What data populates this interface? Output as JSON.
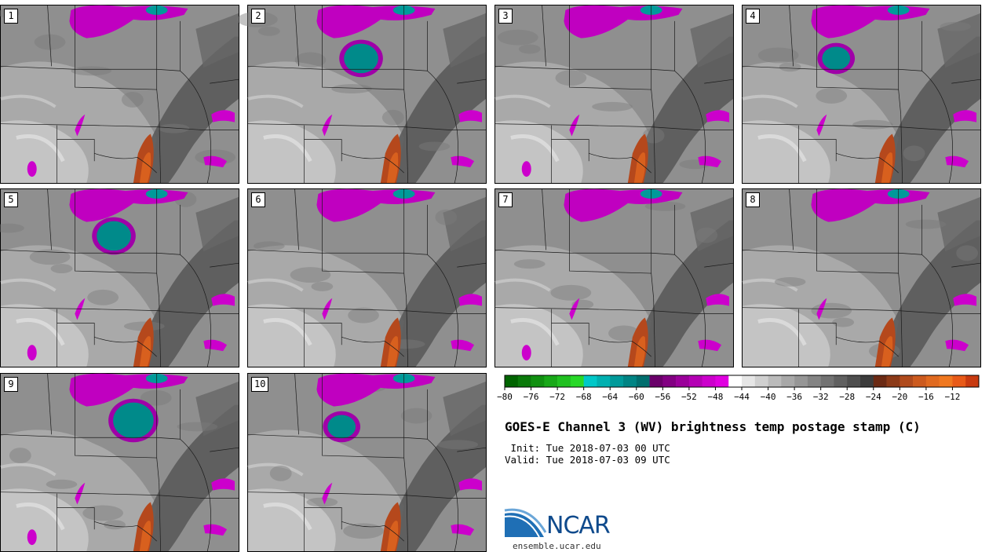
{
  "panels": [
    {
      "label": "1"
    },
    {
      "label": "2"
    },
    {
      "label": "3"
    },
    {
      "label": "4"
    },
    {
      "label": "5"
    },
    {
      "label": "6"
    },
    {
      "label": "7"
    },
    {
      "label": "8"
    },
    {
      "label": "9"
    },
    {
      "label": "10"
    }
  ],
  "colorbar": {
    "ticks": [
      "−80",
      "−76",
      "−72",
      "−68",
      "−64",
      "−60",
      "−56",
      "−52",
      "−48",
      "−44",
      "−40",
      "−36",
      "−32",
      "−28",
      "−24",
      "−20",
      "−16",
      "−12"
    ],
    "colors": [
      "#006400",
      "#0a7a0a",
      "#109010",
      "#18a818",
      "#20c020",
      "#28d828",
      "#00c8c8",
      "#00b0b0",
      "#009a9a",
      "#008484",
      "#006e6e",
      "#6a006a",
      "#820082",
      "#9a009a",
      "#b400b4",
      "#cc00cc",
      "#e000e0",
      "#ffffff",
      "#e6e6e6",
      "#d0d0d0",
      "#bbbbbb",
      "#a8a8a8",
      "#969696",
      "#848484",
      "#727272",
      "#606060",
      "#4e4e4e",
      "#3c3c3c",
      "#6b2a14",
      "#8c3a18",
      "#b04a1c",
      "#cc5a1e",
      "#e06a20",
      "#f07820",
      "#e85a18",
      "#c83a10"
    ]
  },
  "title": "GOES-E Channel 3 (WV) brightness temp postage stamp (C)",
  "init_line": " Init: Tue 2018-07-03 00 UTC",
  "valid_line": "Valid: Tue 2018-07-03 09 UTC",
  "logo": {
    "text": "NCAR",
    "color": "#0f4a8c"
  },
  "site": "ensemble.ucar.edu"
}
